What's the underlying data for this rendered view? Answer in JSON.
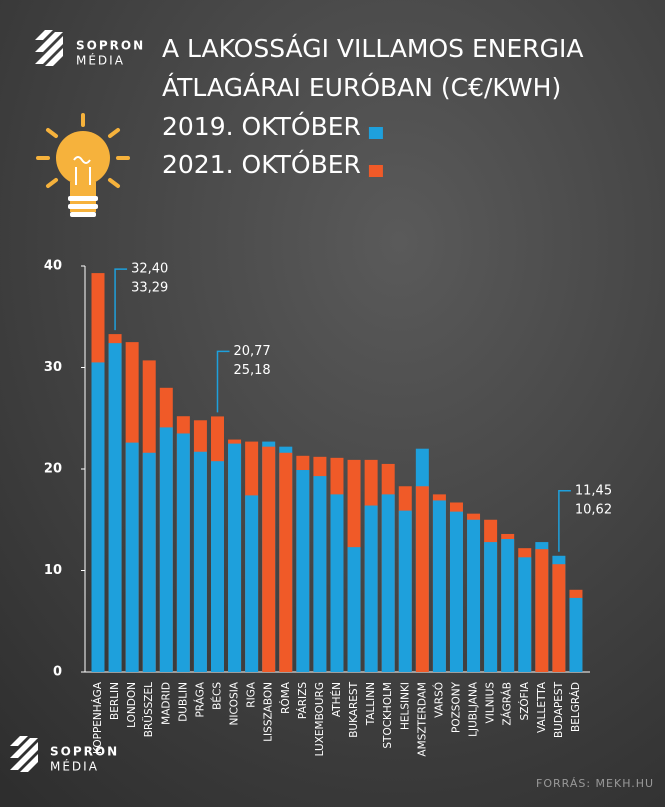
{
  "logo": [
    "SOPRON",
    "MÉDIA"
  ],
  "source": "FORRÁS: MEKH.HU",
  "chart_data": {
    "type": "overlap-bar",
    "title": [
      "A LAKOSSÁGI VILLAMOS ENERGIA",
      "ÁTLAGÁRAI EURÓBAN (C€/KWH)"
    ],
    "categories": [
      "KOPPENHÁGA",
      "BERLIN",
      "LONDON",
      "BRÜSSZEL",
      "MADRID",
      "DUBLIN",
      "PRÁGA",
      "BÉCS",
      "NICOSIA",
      "RIGA",
      "LISSZABON",
      "RÓMA",
      "PÁRIZS",
      "LUXEMBOURG",
      "ATHÉN",
      "BUKAREST",
      "TALLINN",
      "STOCKHOLM",
      "HELSINKI",
      "AMSZTERDAM",
      "VARSÓ",
      "POZSONY",
      "LJUBLJANA",
      "VILNIUS",
      "ZÁGRÁB",
      "SZÓFIA",
      "VALLETTA",
      "BUDAPEST",
      "BELGRÁD"
    ],
    "series": [
      {
        "name": "2019. OKTÓBER",
        "color": "#1ea0dc",
        "values": [
          30.5,
          32.4,
          22.6,
          21.6,
          24.1,
          23.5,
          21.7,
          20.77,
          22.5,
          17.4,
          22.7,
          22.2,
          19.9,
          19.3,
          17.5,
          12.3,
          16.4,
          17.5,
          15.9,
          22.0,
          16.9,
          15.8,
          15.0,
          12.8,
          13.1,
          11.3,
          12.8,
          11.45,
          7.3
        ],
        "value_labels": [
          null,
          "32,40",
          null,
          null,
          null,
          null,
          null,
          "20,77",
          null,
          null,
          null,
          null,
          null,
          null,
          null,
          null,
          null,
          null,
          null,
          null,
          null,
          null,
          null,
          null,
          null,
          null,
          null,
          "11,45",
          null
        ]
      },
      {
        "name": "2021. OKTÓBER",
        "color": "#f05a28",
        "values": [
          39.3,
          33.29,
          32.5,
          30.7,
          28.0,
          25.2,
          24.8,
          25.18,
          22.9,
          22.7,
          22.2,
          21.6,
          21.3,
          21.2,
          21.1,
          20.9,
          20.9,
          20.5,
          18.3,
          18.3,
          17.5,
          16.7,
          15.6,
          15.0,
          13.6,
          12.2,
          12.1,
          10.62,
          8.1
        ],
        "value_labels": [
          null,
          "33,29",
          null,
          null,
          null,
          null,
          null,
          "25,18",
          null,
          null,
          null,
          null,
          null,
          null,
          null,
          null,
          null,
          null,
          null,
          null,
          null,
          null,
          null,
          null,
          null,
          null,
          null,
          "10,62",
          null
        ]
      }
    ],
    "highlight_color": "#f6b23c",
    "ylim": [
      0,
      40
    ],
    "yticks": [
      0,
      10,
      20,
      30,
      40
    ]
  }
}
